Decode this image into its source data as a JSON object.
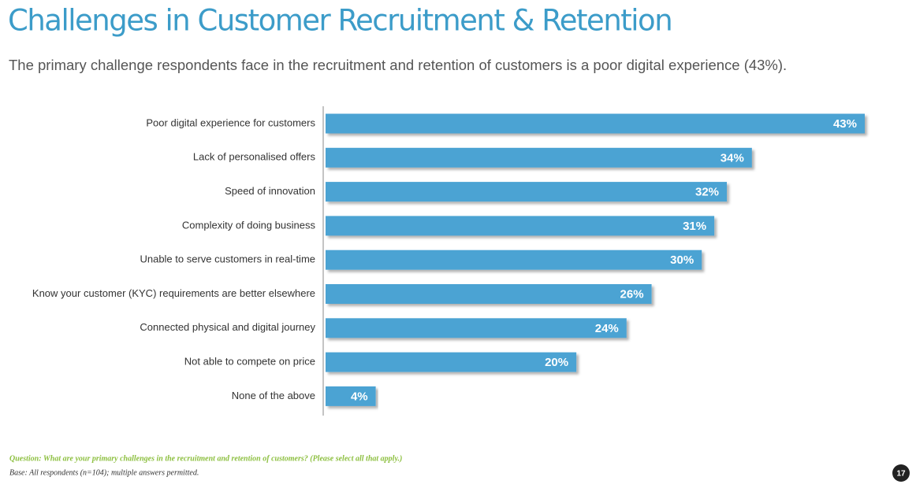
{
  "chart_data": {
    "type": "hbar",
    "title": "Challenges in Customer Recruitment & Retention",
    "subtitle": "The primary challenge respondents face in the recruitment and retention of customers is a poor digital experience (43%).",
    "categories": [
      "Poor digital experience for customers",
      "Lack of personalised offers",
      "Speed of innovation",
      "Complexity of doing business",
      "Unable to serve customers in real-time",
      "Know your customer (KYC) requirements are better elsewhere",
      "Connected physical and digital journey",
      "Not able to compete on price",
      "None of the above"
    ],
    "values": [
      43,
      34,
      32,
      31,
      30,
      26,
      24,
      20,
      4
    ],
    "value_labels": [
      "43%",
      "34%",
      "32%",
      "31%",
      "30%",
      "26%",
      "24%",
      "20%",
      "4%"
    ],
    "color": "#4ba3d3"
  },
  "footer": {
    "question": "Question: What are your primary challenges in the recruitment and retention of customers? (Please select all that apply.)",
    "base": "Base: All respondents (n=104); multiple answers permitted.",
    "page_number": "17"
  }
}
